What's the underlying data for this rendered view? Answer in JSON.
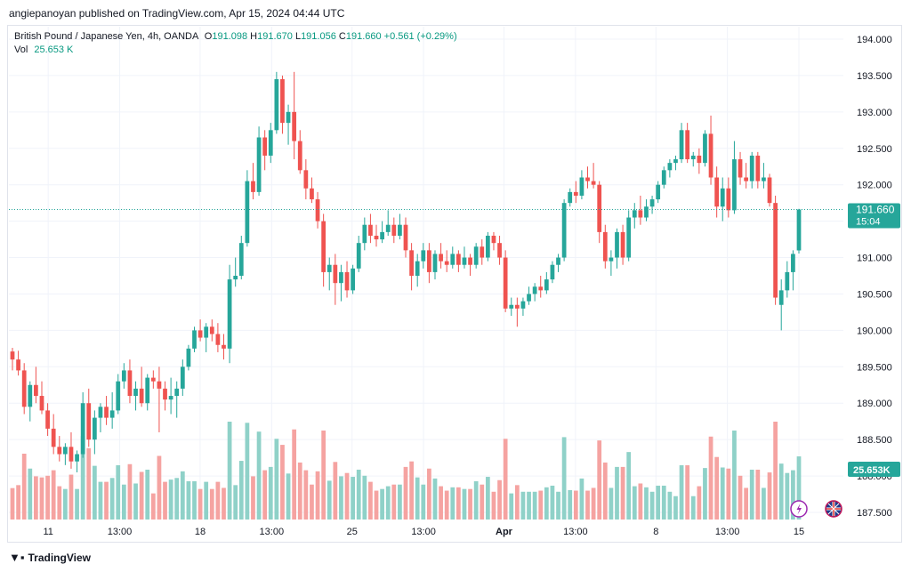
{
  "header": {
    "publisher_line": "angiepanoyan published on TradingView.com, Apr 15, 2024 04:44 UTC"
  },
  "legend": {
    "symbol": "British Pound / Japanese Yen, 4h, OANDA",
    "o_label": "O",
    "o_value": "191.098",
    "h_label": "H",
    "h_value": "191.670",
    "l_label": "L",
    "l_value": "191.056",
    "c_label": "C",
    "c_value": "191.660",
    "change": "+0.561 (+0.29%)",
    "vol_label": "Vol",
    "vol_value": "25.653 K"
  },
  "price_badge": {
    "price": "191.660",
    "countdown": "15:04"
  },
  "volume_badge": "25.653K",
  "footer": {
    "brand": "TradingView"
  },
  "colors": {
    "up": "#26a69a",
    "down": "#ef5350",
    "vol_up": "#8fd1c8",
    "vol_down": "#f5a3a1",
    "grid": "#f0f3fa",
    "axis_text": "#131722"
  },
  "chart_data": {
    "type": "candlestick",
    "timeframe": "4h",
    "y_axis": {
      "min": 187.5,
      "max": 194.0,
      "ticks": [
        "194.000",
        "193.500",
        "193.000",
        "192.500",
        "192.000",
        "191.500",
        "191.000",
        "190.500",
        "190.000",
        "189.500",
        "189.000",
        "188.500",
        "188.000",
        "187.500"
      ]
    },
    "x_ticks": [
      "11",
      "13:00",
      "18",
      "13:00",
      "25",
      "13:00",
      "Apr",
      "13:00",
      "8",
      "13:00",
      "15"
    ],
    "last_close": 191.66,
    "candles": [
      {
        "o": 189.71,
        "h": 189.76,
        "l": 189.45,
        "c": 189.6
      },
      {
        "o": 189.6,
        "h": 189.72,
        "l": 189.38,
        "c": 189.45
      },
      {
        "o": 189.45,
        "h": 189.55,
        "l": 188.85,
        "c": 188.95
      },
      {
        "o": 188.95,
        "h": 189.3,
        "l": 188.75,
        "c": 189.25
      },
      {
        "o": 189.25,
        "h": 189.5,
        "l": 189.0,
        "c": 189.1
      },
      {
        "o": 189.1,
        "h": 189.3,
        "l": 188.85,
        "c": 188.9
      },
      {
        "o": 188.9,
        "h": 189.0,
        "l": 188.55,
        "c": 188.65
      },
      {
        "o": 188.65,
        "h": 188.85,
        "l": 188.3,
        "c": 188.4
      },
      {
        "o": 188.4,
        "h": 188.55,
        "l": 188.2,
        "c": 188.3
      },
      {
        "o": 188.3,
        "h": 188.45,
        "l": 188.15,
        "c": 188.4
      },
      {
        "o": 188.4,
        "h": 188.6,
        "l": 188.1,
        "c": 188.2
      },
      {
        "o": 188.2,
        "h": 188.35,
        "l": 188.05,
        "c": 188.3
      },
      {
        "o": 188.3,
        "h": 189.15,
        "l": 188.25,
        "c": 189.0
      },
      {
        "o": 189.0,
        "h": 189.2,
        "l": 188.4,
        "c": 188.5
      },
      {
        "o": 188.5,
        "h": 188.9,
        "l": 188.3,
        "c": 188.8
      },
      {
        "o": 188.8,
        "h": 189.0,
        "l": 188.6,
        "c": 188.95
      },
      {
        "o": 188.95,
        "h": 189.1,
        "l": 188.7,
        "c": 188.8
      },
      {
        "o": 188.8,
        "h": 189.15,
        "l": 188.65,
        "c": 188.9
      },
      {
        "o": 188.9,
        "h": 189.4,
        "l": 188.85,
        "c": 189.3
      },
      {
        "o": 189.3,
        "h": 189.55,
        "l": 189.2,
        "c": 189.45
      },
      {
        "o": 189.45,
        "h": 189.6,
        "l": 189.0,
        "c": 189.1
      },
      {
        "o": 189.1,
        "h": 189.3,
        "l": 188.9,
        "c": 189.2
      },
      {
        "o": 189.2,
        "h": 189.5,
        "l": 188.95,
        "c": 189.0
      },
      {
        "o": 189.0,
        "h": 189.4,
        "l": 188.9,
        "c": 189.35
      },
      {
        "o": 189.35,
        "h": 189.45,
        "l": 189.2,
        "c": 189.3
      },
      {
        "o": 189.3,
        "h": 189.5,
        "l": 188.6,
        "c": 189.2
      },
      {
        "o": 189.2,
        "h": 189.3,
        "l": 188.9,
        "c": 189.05
      },
      {
        "o": 189.05,
        "h": 189.35,
        "l": 188.85,
        "c": 189.1
      },
      {
        "o": 189.1,
        "h": 189.3,
        "l": 188.8,
        "c": 189.2
      },
      {
        "o": 189.2,
        "h": 189.6,
        "l": 189.1,
        "c": 189.5
      },
      {
        "o": 189.5,
        "h": 189.8,
        "l": 189.45,
        "c": 189.75
      },
      {
        "o": 189.75,
        "h": 190.05,
        "l": 189.7,
        "c": 190.0
      },
      {
        "o": 190.0,
        "h": 190.15,
        "l": 189.85,
        "c": 189.9
      },
      {
        "o": 189.9,
        "h": 190.1,
        "l": 189.7,
        "c": 190.05
      },
      {
        "o": 190.05,
        "h": 190.15,
        "l": 189.85,
        "c": 189.95
      },
      {
        "o": 189.95,
        "h": 190.1,
        "l": 189.7,
        "c": 189.8
      },
      {
        "o": 189.8,
        "h": 189.95,
        "l": 189.6,
        "c": 189.75
      },
      {
        "o": 189.75,
        "h": 190.9,
        "l": 189.55,
        "c": 190.7
      },
      {
        "o": 190.7,
        "h": 191.0,
        "l": 190.6,
        "c": 190.75
      },
      {
        "o": 190.75,
        "h": 191.3,
        "l": 190.7,
        "c": 191.2
      },
      {
        "o": 191.2,
        "h": 192.2,
        "l": 191.15,
        "c": 192.05
      },
      {
        "o": 192.05,
        "h": 192.3,
        "l": 191.8,
        "c": 191.9
      },
      {
        "o": 191.9,
        "h": 192.8,
        "l": 191.85,
        "c": 192.65
      },
      {
        "o": 192.65,
        "h": 192.75,
        "l": 192.2,
        "c": 192.4
      },
      {
        "o": 192.4,
        "h": 192.85,
        "l": 192.3,
        "c": 192.75
      },
      {
        "o": 192.75,
        "h": 193.55,
        "l": 192.7,
        "c": 193.45
      },
      {
        "o": 193.45,
        "h": 193.5,
        "l": 192.7,
        "c": 192.85
      },
      {
        "o": 192.85,
        "h": 193.1,
        "l": 192.55,
        "c": 193.0
      },
      {
        "o": 193.0,
        "h": 193.55,
        "l": 192.35,
        "c": 192.6
      },
      {
        "o": 192.6,
        "h": 192.75,
        "l": 192.15,
        "c": 192.2
      },
      {
        "o": 192.2,
        "h": 192.35,
        "l": 191.8,
        "c": 191.95
      },
      {
        "o": 191.95,
        "h": 192.1,
        "l": 191.75,
        "c": 191.8
      },
      {
        "o": 191.8,
        "h": 191.9,
        "l": 191.4,
        "c": 191.5
      },
      {
        "o": 191.5,
        "h": 191.6,
        "l": 190.6,
        "c": 190.8
      },
      {
        "o": 190.8,
        "h": 191.0,
        "l": 190.55,
        "c": 190.9
      },
      {
        "o": 190.9,
        "h": 191.05,
        "l": 190.35,
        "c": 190.65
      },
      {
        "o": 190.65,
        "h": 190.9,
        "l": 190.4,
        "c": 190.8
      },
      {
        "o": 190.8,
        "h": 190.95,
        "l": 190.45,
        "c": 190.55
      },
      {
        "o": 190.55,
        "h": 190.9,
        "l": 190.5,
        "c": 190.85
      },
      {
        "o": 190.85,
        "h": 191.3,
        "l": 190.8,
        "c": 191.2
      },
      {
        "o": 191.2,
        "h": 191.55,
        "l": 191.1,
        "c": 191.45
      },
      {
        "o": 191.45,
        "h": 191.6,
        "l": 191.2,
        "c": 191.3
      },
      {
        "o": 191.3,
        "h": 191.45,
        "l": 191.15,
        "c": 191.25
      },
      {
        "o": 191.25,
        "h": 191.5,
        "l": 191.2,
        "c": 191.35
      },
      {
        "o": 191.35,
        "h": 191.65,
        "l": 191.3,
        "c": 191.45
      },
      {
        "o": 191.45,
        "h": 191.55,
        "l": 191.2,
        "c": 191.3
      },
      {
        "o": 191.3,
        "h": 191.6,
        "l": 191.25,
        "c": 191.45
      },
      {
        "o": 191.45,
        "h": 191.55,
        "l": 191.0,
        "c": 191.1
      },
      {
        "o": 191.1,
        "h": 191.2,
        "l": 190.55,
        "c": 190.75
      },
      {
        "o": 190.75,
        "h": 191.05,
        "l": 190.6,
        "c": 190.95
      },
      {
        "o": 190.95,
        "h": 191.2,
        "l": 190.85,
        "c": 191.1
      },
      {
        "o": 191.1,
        "h": 191.2,
        "l": 190.65,
        "c": 190.8
      },
      {
        "o": 190.8,
        "h": 191.1,
        "l": 190.7,
        "c": 191.05
      },
      {
        "o": 191.05,
        "h": 191.2,
        "l": 190.85,
        "c": 190.95
      },
      {
        "o": 190.95,
        "h": 191.1,
        "l": 190.8,
        "c": 190.9
      },
      {
        "o": 190.9,
        "h": 191.15,
        "l": 190.85,
        "c": 191.05
      },
      {
        "o": 191.05,
        "h": 191.1,
        "l": 190.8,
        "c": 190.9
      },
      {
        "o": 190.9,
        "h": 191.15,
        "l": 190.85,
        "c": 191.0
      },
      {
        "o": 191.0,
        "h": 191.05,
        "l": 190.75,
        "c": 190.9
      },
      {
        "o": 190.9,
        "h": 191.2,
        "l": 190.85,
        "c": 191.15
      },
      {
        "o": 191.15,
        "h": 191.25,
        "l": 190.9,
        "c": 191.0
      },
      {
        "o": 191.0,
        "h": 191.35,
        "l": 190.95,
        "c": 191.3
      },
      {
        "o": 191.3,
        "h": 191.35,
        "l": 191.1,
        "c": 191.2
      },
      {
        "o": 191.2,
        "h": 191.3,
        "l": 190.9,
        "c": 191.0
      },
      {
        "o": 191.0,
        "h": 191.1,
        "l": 190.25,
        "c": 190.3
      },
      {
        "o": 190.3,
        "h": 190.45,
        "l": 190.2,
        "c": 190.35
      },
      {
        "o": 190.35,
        "h": 190.45,
        "l": 190.05,
        "c": 190.3
      },
      {
        "o": 190.3,
        "h": 190.45,
        "l": 190.2,
        "c": 190.4
      },
      {
        "o": 190.4,
        "h": 190.6,
        "l": 190.35,
        "c": 190.5
      },
      {
        "o": 190.5,
        "h": 190.65,
        "l": 190.4,
        "c": 190.6
      },
      {
        "o": 190.6,
        "h": 190.75,
        "l": 190.45,
        "c": 190.55
      },
      {
        "o": 190.55,
        "h": 190.8,
        "l": 190.5,
        "c": 190.7
      },
      {
        "o": 190.7,
        "h": 190.95,
        "l": 190.65,
        "c": 190.9
      },
      {
        "o": 190.9,
        "h": 191.05,
        "l": 190.8,
        "c": 191.0
      },
      {
        "o": 191.0,
        "h": 191.8,
        "l": 190.95,
        "c": 191.75
      },
      {
        "o": 191.75,
        "h": 191.95,
        "l": 191.7,
        "c": 191.9
      },
      {
        "o": 191.9,
        "h": 192.05,
        "l": 191.75,
        "c": 191.85
      },
      {
        "o": 191.85,
        "h": 192.2,
        "l": 191.8,
        "c": 192.1
      },
      {
        "o": 192.1,
        "h": 192.25,
        "l": 191.95,
        "c": 192.05
      },
      {
        "o": 192.05,
        "h": 192.3,
        "l": 191.95,
        "c": 192.0
      },
      {
        "o": 192.0,
        "h": 192.05,
        "l": 191.2,
        "c": 191.35
      },
      {
        "o": 191.35,
        "h": 191.45,
        "l": 190.85,
        "c": 190.95
      },
      {
        "o": 190.95,
        "h": 191.1,
        "l": 190.75,
        "c": 191.0
      },
      {
        "o": 191.0,
        "h": 191.4,
        "l": 190.85,
        "c": 191.35
      },
      {
        "o": 191.35,
        "h": 191.45,
        "l": 190.9,
        "c": 191.0
      },
      {
        "o": 191.0,
        "h": 191.65,
        "l": 190.95,
        "c": 191.55
      },
      {
        "o": 191.55,
        "h": 191.75,
        "l": 191.4,
        "c": 191.65
      },
      {
        "o": 191.65,
        "h": 191.85,
        "l": 191.45,
        "c": 191.55
      },
      {
        "o": 191.55,
        "h": 191.8,
        "l": 191.5,
        "c": 191.7
      },
      {
        "o": 191.7,
        "h": 191.85,
        "l": 191.6,
        "c": 191.8
      },
      {
        "o": 191.8,
        "h": 192.05,
        "l": 191.75,
        "c": 192.0
      },
      {
        "o": 192.0,
        "h": 192.25,
        "l": 191.95,
        "c": 192.2
      },
      {
        "o": 192.2,
        "h": 192.35,
        "l": 192.1,
        "c": 192.3
      },
      {
        "o": 192.3,
        "h": 192.4,
        "l": 192.2,
        "c": 192.35
      },
      {
        "o": 192.35,
        "h": 192.85,
        "l": 192.3,
        "c": 192.75
      },
      {
        "o": 192.75,
        "h": 192.85,
        "l": 192.3,
        "c": 192.35
      },
      {
        "o": 192.35,
        "h": 192.45,
        "l": 192.25,
        "c": 192.4
      },
      {
        "o": 192.4,
        "h": 192.5,
        "l": 192.15,
        "c": 192.3
      },
      {
        "o": 192.3,
        "h": 192.75,
        "l": 192.25,
        "c": 192.7
      },
      {
        "o": 192.7,
        "h": 192.95,
        "l": 192.0,
        "c": 192.1
      },
      {
        "o": 192.1,
        "h": 192.25,
        "l": 191.55,
        "c": 191.7
      },
      {
        "o": 191.7,
        "h": 192.1,
        "l": 191.5,
        "c": 191.95
      },
      {
        "o": 191.95,
        "h": 192.1,
        "l": 191.55,
        "c": 191.65
      },
      {
        "o": 191.65,
        "h": 192.6,
        "l": 191.6,
        "c": 192.35
      },
      {
        "o": 192.35,
        "h": 192.45,
        "l": 192.0,
        "c": 192.1
      },
      {
        "o": 192.1,
        "h": 192.3,
        "l": 191.95,
        "c": 192.05
      },
      {
        "o": 192.05,
        "h": 192.45,
        "l": 191.95,
        "c": 192.4
      },
      {
        "o": 192.4,
        "h": 192.45,
        "l": 191.95,
        "c": 192.05
      },
      {
        "o": 192.05,
        "h": 192.3,
        "l": 191.95,
        "c": 192.1
      },
      {
        "o": 192.1,
        "h": 192.15,
        "l": 191.7,
        "c": 191.75
      },
      {
        "o": 191.75,
        "h": 191.85,
        "l": 190.35,
        "c": 190.45
      },
      {
        "o": 190.35,
        "h": 190.7,
        "l": 190.0,
        "c": 190.55
      },
      {
        "o": 190.55,
        "h": 190.95,
        "l": 190.45,
        "c": 190.8
      },
      {
        "o": 190.8,
        "h": 191.1,
        "l": 190.55,
        "c": 191.05
      },
      {
        "o": 191.098,
        "h": 191.67,
        "l": 191.056,
        "c": 191.66
      }
    ]
  }
}
